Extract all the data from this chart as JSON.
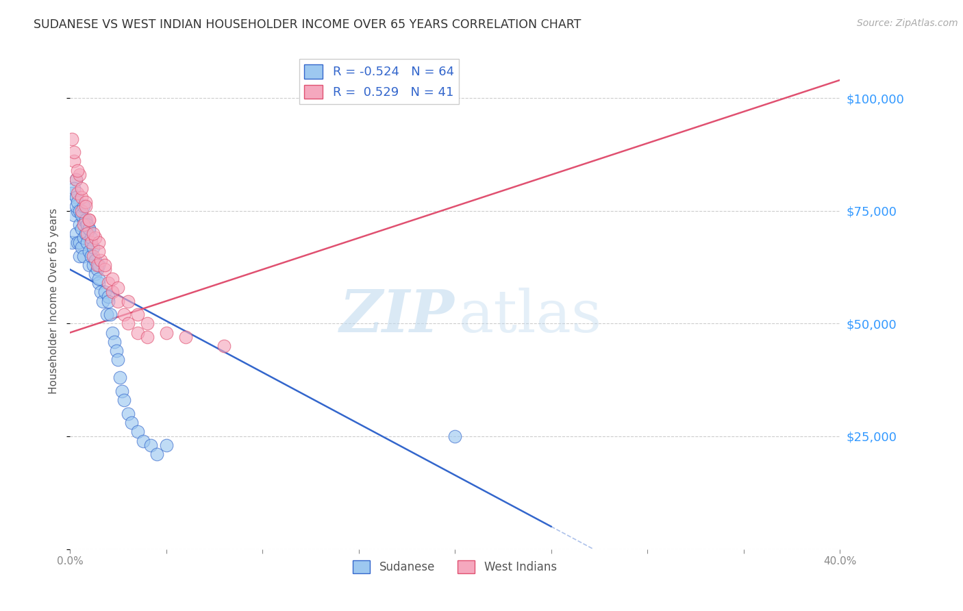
{
  "title": "SUDANESE VS WEST INDIAN HOUSEHOLDER INCOME OVER 65 YEARS CORRELATION CHART",
  "source": "Source: ZipAtlas.com",
  "ylabel": "Householder Income Over 65 years",
  "xlim": [
    0.0,
    0.4
  ],
  "ylim": [
    0,
    110000
  ],
  "xtick_positions": [
    0.0,
    0.05,
    0.1,
    0.15,
    0.2,
    0.25,
    0.3,
    0.35,
    0.4
  ],
  "xtick_labels": [
    "0.0%",
    "",
    "",
    "",
    "",
    "",
    "",
    "",
    "40.0%"
  ],
  "yticks": [
    0,
    25000,
    50000,
    75000,
    100000
  ],
  "ytick_labels": [
    "",
    "$25,000",
    "$50,000",
    "$75,000",
    "$100,000"
  ],
  "grid_color": "#cccccc",
  "bg_color": "#ffffff",
  "sudanese_color": "#9DC8F0",
  "west_indian_color": "#F5A8BE",
  "trend_blue_color": "#3366CC",
  "trend_pink_color": "#E05070",
  "sudanese_x": [
    0.001,
    0.002,
    0.003,
    0.003,
    0.004,
    0.004,
    0.005,
    0.005,
    0.005,
    0.006,
    0.006,
    0.007,
    0.007,
    0.007,
    0.008,
    0.008,
    0.009,
    0.009,
    0.01,
    0.01,
    0.01,
    0.011,
    0.011,
    0.012,
    0.012,
    0.013,
    0.013,
    0.014,
    0.015,
    0.015,
    0.016,
    0.017,
    0.018,
    0.019,
    0.02,
    0.021,
    0.022,
    0.023,
    0.024,
    0.025,
    0.026,
    0.027,
    0.028,
    0.03,
    0.032,
    0.035,
    0.038,
    0.042,
    0.045,
    0.05,
    0.001,
    0.002,
    0.003,
    0.003,
    0.004,
    0.005,
    0.006,
    0.007,
    0.008,
    0.009,
    0.01,
    0.015,
    0.02,
    0.2
  ],
  "sudanese_y": [
    68000,
    74000,
    82000,
    70000,
    75000,
    68000,
    72000,
    68000,
    65000,
    71000,
    67000,
    73000,
    69000,
    65000,
    73000,
    70000,
    72000,
    68000,
    71000,
    66000,
    63000,
    69000,
    65000,
    67000,
    63000,
    64000,
    61000,
    62000,
    63000,
    59000,
    57000,
    55000,
    57000,
    52000,
    56000,
    52000,
    48000,
    46000,
    44000,
    42000,
    38000,
    35000,
    33000,
    30000,
    28000,
    26000,
    24000,
    23000,
    21000,
    23000,
    79000,
    80000,
    78000,
    76000,
    77000,
    75000,
    74000,
    76000,
    73000,
    72000,
    71000,
    60000,
    55000,
    25000
  ],
  "west_indian_x": [
    0.001,
    0.002,
    0.003,
    0.004,
    0.005,
    0.006,
    0.006,
    0.007,
    0.008,
    0.009,
    0.01,
    0.011,
    0.012,
    0.013,
    0.014,
    0.015,
    0.016,
    0.018,
    0.02,
    0.022,
    0.025,
    0.028,
    0.03,
    0.035,
    0.04,
    0.002,
    0.004,
    0.006,
    0.008,
    0.01,
    0.012,
    0.015,
    0.018,
    0.022,
    0.025,
    0.03,
    0.035,
    0.04,
    0.05,
    0.06,
    0.08
  ],
  "west_indian_y": [
    91000,
    86000,
    82000,
    79000,
    83000,
    75000,
    78000,
    72000,
    77000,
    70000,
    73000,
    68000,
    65000,
    69000,
    63000,
    68000,
    64000,
    62000,
    59000,
    57000,
    55000,
    52000,
    50000,
    48000,
    47000,
    88000,
    84000,
    80000,
    76000,
    73000,
    70000,
    66000,
    63000,
    60000,
    58000,
    55000,
    52000,
    50000,
    48000,
    47000,
    45000
  ],
  "blue_trend_x0": 0.0,
  "blue_trend_y0": 62000,
  "blue_trend_x1": 0.25,
  "blue_trend_y1": 5000,
  "pink_trend_x0": 0.0,
  "pink_trend_y0": 48000,
  "pink_trend_x1": 0.4,
  "pink_trend_y1": 104000,
  "legend_entries": [
    {
      "label": "R = -0.524   N = 64",
      "color": "#9DC8F0",
      "edge": "#3366CC"
    },
    {
      "label": "R =  0.529   N = 41",
      "color": "#F5A8BE",
      "edge": "#E05070"
    }
  ],
  "legend_text_color": "#3366CC",
  "bottom_legend": [
    {
      "label": "Sudanese",
      "color": "#9DC8F0",
      "edge": "#3366CC"
    },
    {
      "label": "West Indians",
      "color": "#F5A8BE",
      "edge": "#E05070"
    }
  ]
}
